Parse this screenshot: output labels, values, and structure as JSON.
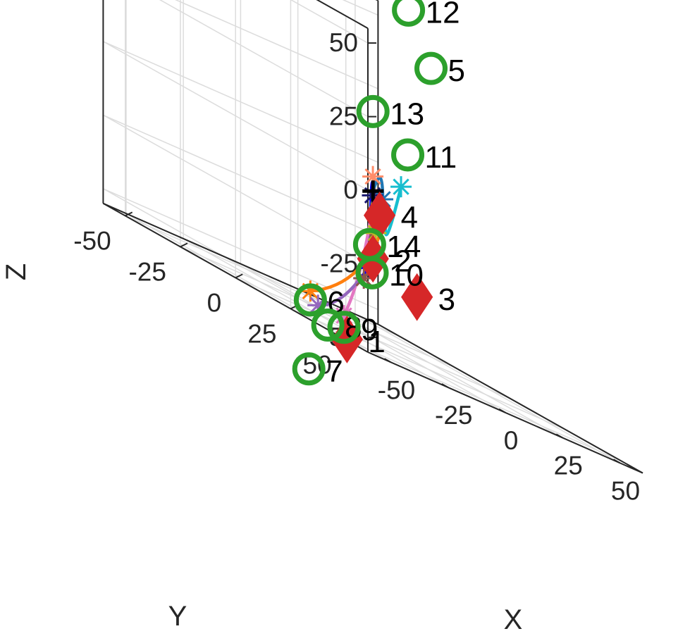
{
  "chart_data": {
    "type": "scatter3d",
    "title": "",
    "xlabel": "X",
    "ylabel": "Y",
    "zlabel": "Z",
    "xlim": [
      -60,
      60
    ],
    "ylim": [
      -60,
      60
    ],
    "zlim": [
      -55,
      55
    ],
    "xticks": [
      "-50",
      "-25",
      "0",
      "25",
      "50"
    ],
    "yticks": [
      "-50",
      "-25",
      "0",
      "25",
      "50"
    ],
    "zticks": [
      "-50",
      "-25",
      "0",
      "25",
      "50"
    ],
    "grid": true,
    "origin": {
      "x": 0,
      "y": 0,
      "z": -5
    },
    "targets": [
      {
        "label": "1",
        "x": -46,
        "y": 36,
        "z": -56
      },
      {
        "label": "2",
        "x": 0,
        "y": 0,
        "z": -28
      },
      {
        "label": "3",
        "x": 25,
        "y": -6,
        "z": -35
      },
      {
        "label": "4",
        "x": 0,
        "y": 3,
        "z": -12
      }
    ],
    "goals": [
      {
        "label": "5",
        "x": 60,
        "y": -36,
        "z": 42
      },
      {
        "label": "6",
        "x": -10,
        "y": -18,
        "z": -53
      },
      {
        "label": "7",
        "x": -28,
        "y": 0,
        "z": -75
      },
      {
        "label": "8",
        "x": -12,
        "y": -8,
        "z": -58
      },
      {
        "label": "9",
        "x": -30,
        "y": 18,
        "z": -54
      },
      {
        "label": "10",
        "x": -10,
        "y": 10,
        "z": -32
      },
      {
        "label": "11",
        "x": 20,
        "y": -5,
        "z": 12
      },
      {
        "label": "12",
        "x": 55,
        "y": -41,
        "z": 58
      },
      {
        "label": "13",
        "x": 0,
        "y": 0,
        "z": 22
      },
      {
        "label": "14",
        "x": -40,
        "y": 40,
        "z": -20
      }
    ],
    "series": [
      {
        "color": "#0000ff",
        "start": {
          "x": 0,
          "y": 0,
          "z": -5
        },
        "via": {
          "x": -20,
          "y": 20,
          "z": -4
        },
        "end": {
          "x": -40,
          "y": 40,
          "z": -28
        }
      },
      {
        "color": "#ff7f0e",
        "start": {
          "x": 9,
          "y": -3,
          "z": -11
        },
        "via": {
          "x": 5,
          "y": -12,
          "z": -35
        },
        "end": {
          "x": -10,
          "y": -18,
          "z": -50
        }
      },
      {
        "color": "#e377c2",
        "start": {
          "x": -3,
          "y": 3,
          "z": -9
        },
        "via": {
          "x": -15,
          "y": 10,
          "z": -32
        },
        "end": {
          "x": -30,
          "y": 18,
          "z": -50
        }
      },
      {
        "color": "#9467bd",
        "start": {
          "x": -6,
          "y": 6,
          "z": -28
        },
        "via": {
          "x": -16,
          "y": 4,
          "z": -44
        },
        "end": {
          "x": -24,
          "y": 0,
          "z": -52
        }
      },
      {
        "color": "#8c564b",
        "start": {
          "x": -4,
          "y": 4,
          "z": -14
        },
        "via": {
          "x": -4,
          "y": 2,
          "z": -28
        },
        "end": {
          "x": -4,
          "y": 0,
          "z": -36
        }
      },
      {
        "color": "#bcbd22",
        "start": {
          "x": -1,
          "y": 1,
          "z": -8
        },
        "via": {
          "x": -10,
          "y": 10,
          "z": -12
        },
        "end": {
          "x": -18,
          "y": 20,
          "z": -17
        }
      },
      {
        "color": "#ff8c69",
        "start": {
          "x": -2,
          "y": 2,
          "z": -28
        },
        "via": {
          "x": -1,
          "y": 2,
          "z": -10
        },
        "end": {
          "x": -1,
          "y": 1,
          "z": 0
        }
      },
      {
        "color": "#1f77b4",
        "start": {
          "x": 0,
          "y": 0,
          "z": -5
        },
        "via": {
          "x": 8,
          "y": -5,
          "z": 0
        },
        "end": {
          "x": 11,
          "y": -7,
          "z": -7
        }
      },
      {
        "color": "#17becf",
        "start": {
          "x": 9,
          "y": -3,
          "z": -9
        },
        "via": {
          "x": 12,
          "y": -6,
          "z": -18
        },
        "end": {
          "x": 19,
          "y": -7,
          "z": 0
        }
      },
      {
        "color": "#191970",
        "start": {
          "x": 0,
          "y": 0,
          "z": -5
        },
        "via": {
          "x": -3,
          "y": 3,
          "z": -5
        },
        "end": {
          "x": -6,
          "y": 6,
          "z": -6
        }
      }
    ]
  }
}
